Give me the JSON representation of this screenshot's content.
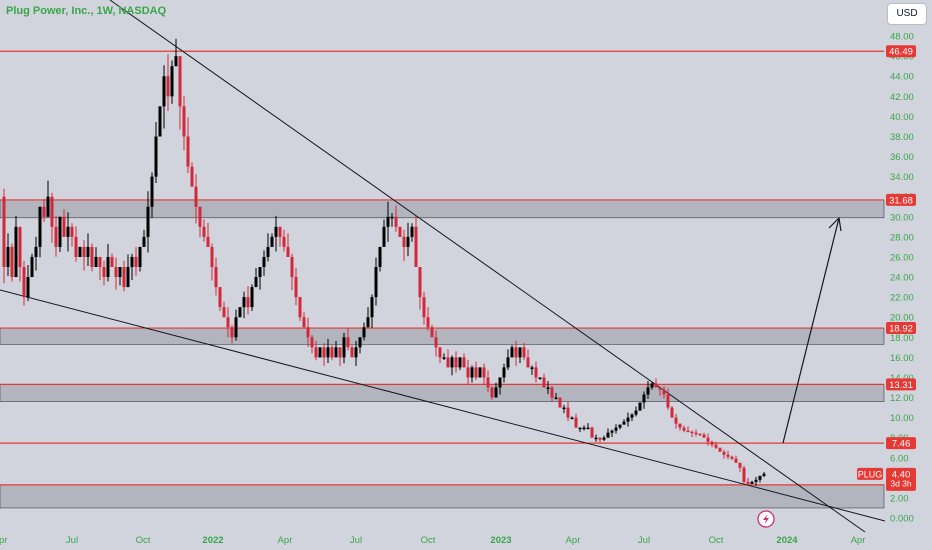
{
  "title": "Plug Power, Inc., 1W, NASDAQ",
  "currency_button": "USD",
  "colors": {
    "background": "#d1d4dc",
    "zone_fill": "#b2b5be",
    "level_line": "#e53935",
    "up_candle": "#000000",
    "down_candle": "#d3283a",
    "axis_text": "#3aa64a",
    "trendline": "#131722"
  },
  "icons": {
    "lightning": "lightning-icon"
  },
  "chart_data": {
    "type": "candlestick",
    "symbol": "PLUG",
    "interval": "1W",
    "price_axis": {
      "ticks": [
        "48.00",
        "46.00",
        "44.00",
        "42.00",
        "40.00",
        "38.00",
        "36.00",
        "34.00",
        "32.00",
        "30.00",
        "28.00",
        "26.00",
        "24.00",
        "22.00",
        "20.00",
        "18.00",
        "16.00",
        "14.00",
        "12.00",
        "10.00",
        "8.00",
        "6.00",
        "4.00",
        "2.00",
        "0.000"
      ]
    },
    "time_axis": {
      "labels": [
        {
          "text": "Apr",
          "bold": false
        },
        {
          "text": "Jul",
          "bold": false
        },
        {
          "text": "Oct",
          "bold": false
        },
        {
          "text": "2022",
          "bold": true
        },
        {
          "text": "Apr",
          "bold": false
        },
        {
          "text": "Jul",
          "bold": false
        },
        {
          "text": "Oct",
          "bold": false
        },
        {
          "text": "2023",
          "bold": true
        },
        {
          "text": "Apr",
          "bold": false
        },
        {
          "text": "Jul",
          "bold": false
        },
        {
          "text": "Oct",
          "bold": false
        },
        {
          "text": "2024",
          "bold": true
        },
        {
          "text": "Apr",
          "bold": false
        }
      ]
    },
    "levels": [
      {
        "value": 46.49,
        "label": "46.49"
      },
      {
        "value": 31.68,
        "label": "31.68"
      },
      {
        "value": 18.92,
        "label": "18.92"
      },
      {
        "value": 13.31,
        "label": "13.31"
      },
      {
        "value": 7.46,
        "label": "7.46"
      },
      {
        "value": 3.3,
        "label": "3.30"
      }
    ],
    "zones": [
      {
        "from": 29.9,
        "to": 31.68
      },
      {
        "from": 17.3,
        "to": 18.92
      },
      {
        "from": 11.6,
        "to": 13.31
      },
      {
        "from": 1.0,
        "to": 3.3
      }
    ],
    "current_price": {
      "ticker": "PLUG",
      "value": "4.40",
      "countdown": "3d 3h"
    },
    "price_path": [
      [
        0,
        32
      ],
      [
        4,
        25
      ],
      [
        8,
        27
      ],
      [
        12,
        24
      ],
      [
        16,
        29
      ],
      [
        20,
        25
      ],
      [
        24,
        22
      ],
      [
        28,
        24
      ],
      [
        32,
        26
      ],
      [
        36,
        27
      ],
      [
        40,
        31
      ],
      [
        44,
        30
      ],
      [
        48,
        32
      ],
      [
        52,
        29
      ],
      [
        56,
        27
      ],
      [
        60,
        30
      ],
      [
        64,
        28
      ],
      [
        68,
        29
      ],
      [
        72,
        28
      ],
      [
        76,
        26
      ],
      [
        80,
        27
      ],
      [
        84,
        26
      ],
      [
        88,
        27
      ],
      [
        92,
        25
      ],
      [
        96,
        26
      ],
      [
        100,
        25
      ],
      [
        104,
        24
      ],
      [
        108,
        26
      ],
      [
        112,
        25
      ],
      [
        116,
        24
      ],
      [
        120,
        25
      ],
      [
        124,
        23
      ],
      [
        128,
        25
      ],
      [
        132,
        26
      ],
      [
        136,
        25
      ],
      [
        140,
        27
      ],
      [
        144,
        28
      ],
      [
        148,
        31
      ],
      [
        152,
        34
      ],
      [
        156,
        38
      ],
      [
        160,
        41
      ],
      [
        164,
        44
      ],
      [
        168,
        42
      ],
      [
        172,
        45
      ],
      [
        176,
        46
      ],
      [
        180,
        41
      ],
      [
        184,
        38
      ],
      [
        188,
        35
      ],
      [
        192,
        33
      ],
      [
        196,
        31
      ],
      [
        200,
        29
      ],
      [
        204,
        28
      ],
      [
        208,
        27
      ],
      [
        212,
        25
      ],
      [
        216,
        23
      ],
      [
        220,
        21
      ],
      [
        224,
        20
      ],
      [
        228,
        19
      ],
      [
        232,
        18
      ],
      [
        236,
        20
      ],
      [
        240,
        21
      ],
      [
        244,
        22
      ],
      [
        248,
        21
      ],
      [
        252,
        23
      ],
      [
        256,
        24
      ],
      [
        260,
        25
      ],
      [
        264,
        26
      ],
      [
        268,
        27
      ],
      [
        272,
        28
      ],
      [
        276,
        29
      ],
      [
        280,
        28
      ],
      [
        284,
        27
      ],
      [
        288,
        26
      ],
      [
        292,
        24
      ],
      [
        296,
        22
      ],
      [
        300,
        20
      ],
      [
        304,
        19
      ],
      [
        308,
        18
      ],
      [
        312,
        17
      ],
      [
        316,
        16
      ],
      [
        320,
        17
      ],
      [
        324,
        16
      ],
      [
        328,
        17
      ],
      [
        332,
        16
      ],
      [
        336,
        17
      ],
      [
        340,
        16
      ],
      [
        344,
        18
      ],
      [
        348,
        17
      ],
      [
        352,
        16
      ],
      [
        356,
        17
      ],
      [
        360,
        18
      ],
      [
        364,
        19
      ],
      [
        368,
        20
      ],
      [
        372,
        22
      ],
      [
        376,
        25
      ],
      [
        380,
        27
      ],
      [
        384,
        29
      ],
      [
        388,
        30
      ],
      [
        392,
        30
      ],
      [
        396,
        29
      ],
      [
        400,
        28
      ],
      [
        404,
        27
      ],
      [
        408,
        28
      ],
      [
        412,
        29
      ],
      [
        416,
        25
      ],
      [
        420,
        22
      ],
      [
        424,
        20
      ],
      [
        428,
        19
      ],
      [
        432,
        18
      ],
      [
        436,
        17
      ],
      [
        440,
        16
      ],
      [
        444,
        16
      ],
      [
        448,
        15
      ],
      [
        452,
        16
      ],
      [
        456,
        15
      ],
      [
        460,
        16
      ],
      [
        464,
        15
      ],
      [
        468,
        14
      ],
      [
        472,
        15
      ],
      [
        476,
        14
      ],
      [
        480,
        15
      ],
      [
        484,
        14
      ],
      [
        488,
        13
      ],
      [
        492,
        12
      ],
      [
        496,
        13
      ],
      [
        500,
        14
      ],
      [
        504,
        15
      ],
      [
        508,
        16
      ],
      [
        512,
        17
      ],
      [
        516,
        16
      ],
      [
        520,
        17
      ],
      [
        524,
        16
      ],
      [
        528,
        15
      ],
      [
        532,
        15
      ],
      [
        536,
        14
      ],
      [
        540,
        14
      ],
      [
        544,
        13
      ],
      [
        548,
        13
      ],
      [
        552,
        12
      ],
      [
        556,
        12
      ],
      [
        560,
        11
      ],
      [
        564,
        11
      ],
      [
        568,
        10
      ],
      [
        572,
        10
      ],
      [
        576,
        9
      ],
      [
        580,
        9
      ],
      [
        584,
        9
      ],
      [
        588,
        9
      ],
      [
        592,
        8
      ],
      [
        596,
        8
      ],
      [
        600,
        7.8
      ],
      [
        604,
        8
      ],
      [
        608,
        8.5
      ],
      [
        612,
        8.7
      ],
      [
        616,
        9
      ],
      [
        620,
        9.3
      ],
      [
        624,
        9.6
      ],
      [
        628,
        10
      ],
      [
        632,
        10.3
      ],
      [
        636,
        10.7
      ],
      [
        640,
        11.5
      ],
      [
        644,
        12.3
      ],
      [
        648,
        13
      ],
      [
        652,
        13.4
      ],
      [
        656,
        13
      ],
      [
        660,
        12.8
      ],
      [
        664,
        12.3
      ],
      [
        668,
        11
      ],
      [
        672,
        10
      ],
      [
        676,
        9.4
      ],
      [
        680,
        9
      ],
      [
        684,
        8.7
      ],
      [
        688,
        8.6
      ],
      [
        692,
        8.5
      ],
      [
        696,
        8.4
      ],
      [
        700,
        8.3
      ],
      [
        704,
        8
      ],
      [
        708,
        7.6
      ],
      [
        712,
        7.3
      ],
      [
        716,
        7
      ],
      [
        720,
        6.6
      ],
      [
        724,
        6.3
      ],
      [
        728,
        6.1
      ],
      [
        732,
        5.9
      ],
      [
        736,
        5.5
      ],
      [
        740,
        5
      ],
      [
        744,
        3.6
      ],
      [
        748,
        3.4
      ],
      [
        752,
        3.6
      ],
      [
        756,
        3.8
      ],
      [
        760,
        4.2
      ],
      [
        764,
        4.4
      ]
    ]
  }
}
